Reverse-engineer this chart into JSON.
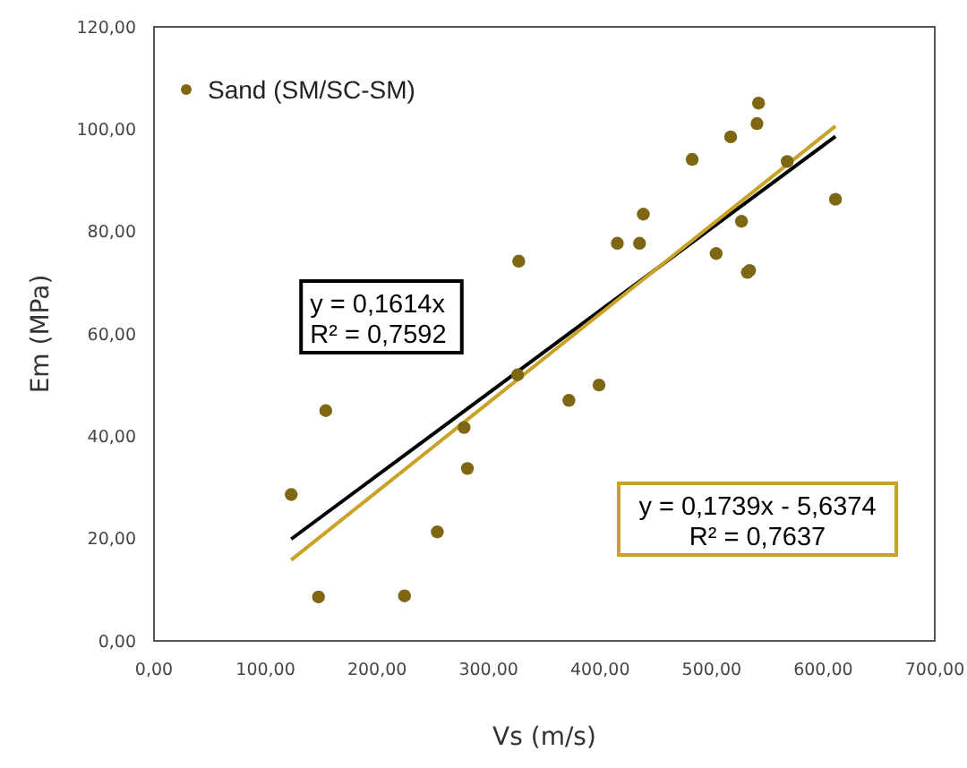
{
  "chart_data": {
    "type": "scatter",
    "xlabel": "Vs (m/s)",
    "ylabel": "Em (MPa)",
    "xlim": [
      0,
      700
    ],
    "xticks": [
      {
        "value": 0,
        "label": "0,00"
      },
      {
        "value": 100,
        "label": "100,00"
      },
      {
        "value": 200,
        "label": "200,00"
      },
      {
        "value": 300,
        "label": "300,00"
      },
      {
        "value": 400,
        "label": "400,00"
      },
      {
        "value": 500,
        "label": "500,00"
      },
      {
        "value": 600,
        "label": "600,00"
      },
      {
        "value": 700,
        "label": "700,00"
      }
    ],
    "ylim": [
      0,
      120
    ],
    "yticks": [
      {
        "value": 0,
        "label": "0,00"
      },
      {
        "value": 20,
        "label": "20,00"
      },
      {
        "value": 40,
        "label": "40,00"
      },
      {
        "value": 60,
        "label": "60,00"
      },
      {
        "value": 80,
        "label": "80,00"
      },
      {
        "value": 100,
        "label": "100,00"
      },
      {
        "value": 120,
        "label": "120,00"
      }
    ],
    "grid": false,
    "legend": "top left",
    "marker": "circle",
    "series": [
      {
        "name": "Sand (SM/SC-SM)",
        "color": "#7d6714",
        "x": [
          327,
          542,
          540.6,
          517,
          482.5,
          567.7,
          611,
          438.7,
          415.4,
          435.3,
          526.7,
          504,
          532,
          534,
          326,
          399,
          372,
          154,
          278,
          281,
          123,
          254,
          147.5,
          224.6
        ],
        "values": [
          74.2,
          105.1,
          101.1,
          98.5,
          94.1,
          93.7,
          86.3,
          83.4,
          77.7,
          77.7,
          82,
          75.7,
          72,
          72.4,
          52,
          50,
          47,
          45,
          41.7,
          33.7,
          28.6,
          21.3,
          8.6,
          8.8
        ]
      },
      {
        "type": "line",
        "color": "#000000",
        "x": [
          123,
          611
        ],
        "values": [
          19.9,
          98.6
        ],
        "marker": "none",
        "line_style": "solid"
      },
      {
        "type": "line",
        "color": "#c9a227",
        "x": [
          123,
          611
        ],
        "values": [
          15.8,
          100.6
        ],
        "marker": "none",
        "line_style": "solid"
      }
    ],
    "annotations": [
      "y = 0,1614x\nR² = 0,7592",
      "y = 0,1739x - 5,6374\nR² = 0,7637"
    ]
  }
}
